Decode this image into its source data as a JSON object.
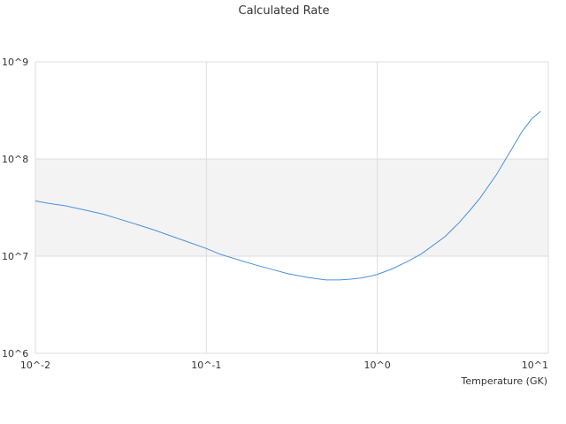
{
  "chart_data": {
    "type": "line",
    "title": "Calculated Rate",
    "xlabel": "Temperature (GK)",
    "ylabel": "",
    "x_scale": "log",
    "y_scale": "log",
    "xlim": [
      0.01,
      10
    ],
    "ylim": [
      1000000,
      1000000000
    ],
    "x_ticks": [
      {
        "value": 0.01,
        "label": "10^-2"
      },
      {
        "value": 0.1,
        "label": "10^-1"
      },
      {
        "value": 1,
        "label": "10^0"
      },
      {
        "value": 10,
        "label": "10^1"
      }
    ],
    "y_ticks": [
      {
        "value": 1000000,
        "label": "10^6"
      },
      {
        "value": 10000000,
        "label": "10^7"
      },
      {
        "value": 100000000,
        "label": "10^8"
      },
      {
        "value": 1000000000,
        "label": "10^9"
      }
    ],
    "alternate_band": [
      10000000,
      100000000
    ],
    "grid": true,
    "legend": "none",
    "colors": {
      "line": "#4a90d9",
      "band": "#f3f3f3",
      "grid": "#dddddd"
    },
    "series": [
      {
        "x": [
          0.01,
          0.012,
          0.015,
          0.02,
          0.025,
          0.03,
          0.04,
          0.05,
          0.06,
          0.08,
          0.1,
          0.12,
          0.15,
          0.2,
          0.25,
          0.3,
          0.4,
          0.5,
          0.6,
          0.7,
          0.8,
          0.9,
          1.0,
          1.2,
          1.5,
          1.8,
          2.0,
          2.5,
          3.0,
          3.5,
          4.0,
          5.0,
          6.0,
          7.0,
          8.0,
          9.0
        ],
        "y": [
          37000000,
          35000000,
          33000000,
          29500000,
          27000000,
          24500000,
          21000000,
          18500000,
          16500000,
          13800000,
          12000000,
          10500000,
          9300000,
          8000000,
          7200000,
          6600000,
          6000000,
          5700000,
          5700000,
          5800000,
          5950000,
          6200000,
          6500000,
          7300000,
          8800000,
          10500000,
          12000000,
          16000000,
          22000000,
          30000000,
          40000000,
          70000000,
          120000000,
          190000000,
          260000000,
          310000000
        ]
      }
    ]
  }
}
